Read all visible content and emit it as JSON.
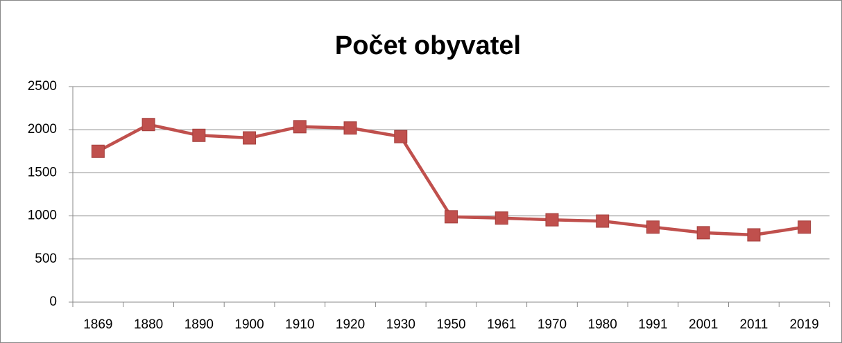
{
  "chart_data": {
    "type": "line",
    "title": "Počet obyvatel",
    "categories": [
      "1869",
      "1880",
      "1890",
      "1900",
      "1910",
      "1920",
      "1930",
      "1950",
      "1961",
      "1970",
      "1980",
      "1991",
      "2001",
      "2011",
      "2019"
    ],
    "series": [
      {
        "name": "Počet obyvatel",
        "color": "#c0504d",
        "values": [
          1750,
          2060,
          1935,
          1905,
          2035,
          2020,
          1920,
          990,
          975,
          955,
          940,
          870,
          805,
          780,
          870
        ]
      }
    ],
    "ylim": [
      0,
      2500
    ],
    "yticks": [
      0,
      500,
      1000,
      1500,
      2000,
      2500
    ],
    "grid": true
  }
}
